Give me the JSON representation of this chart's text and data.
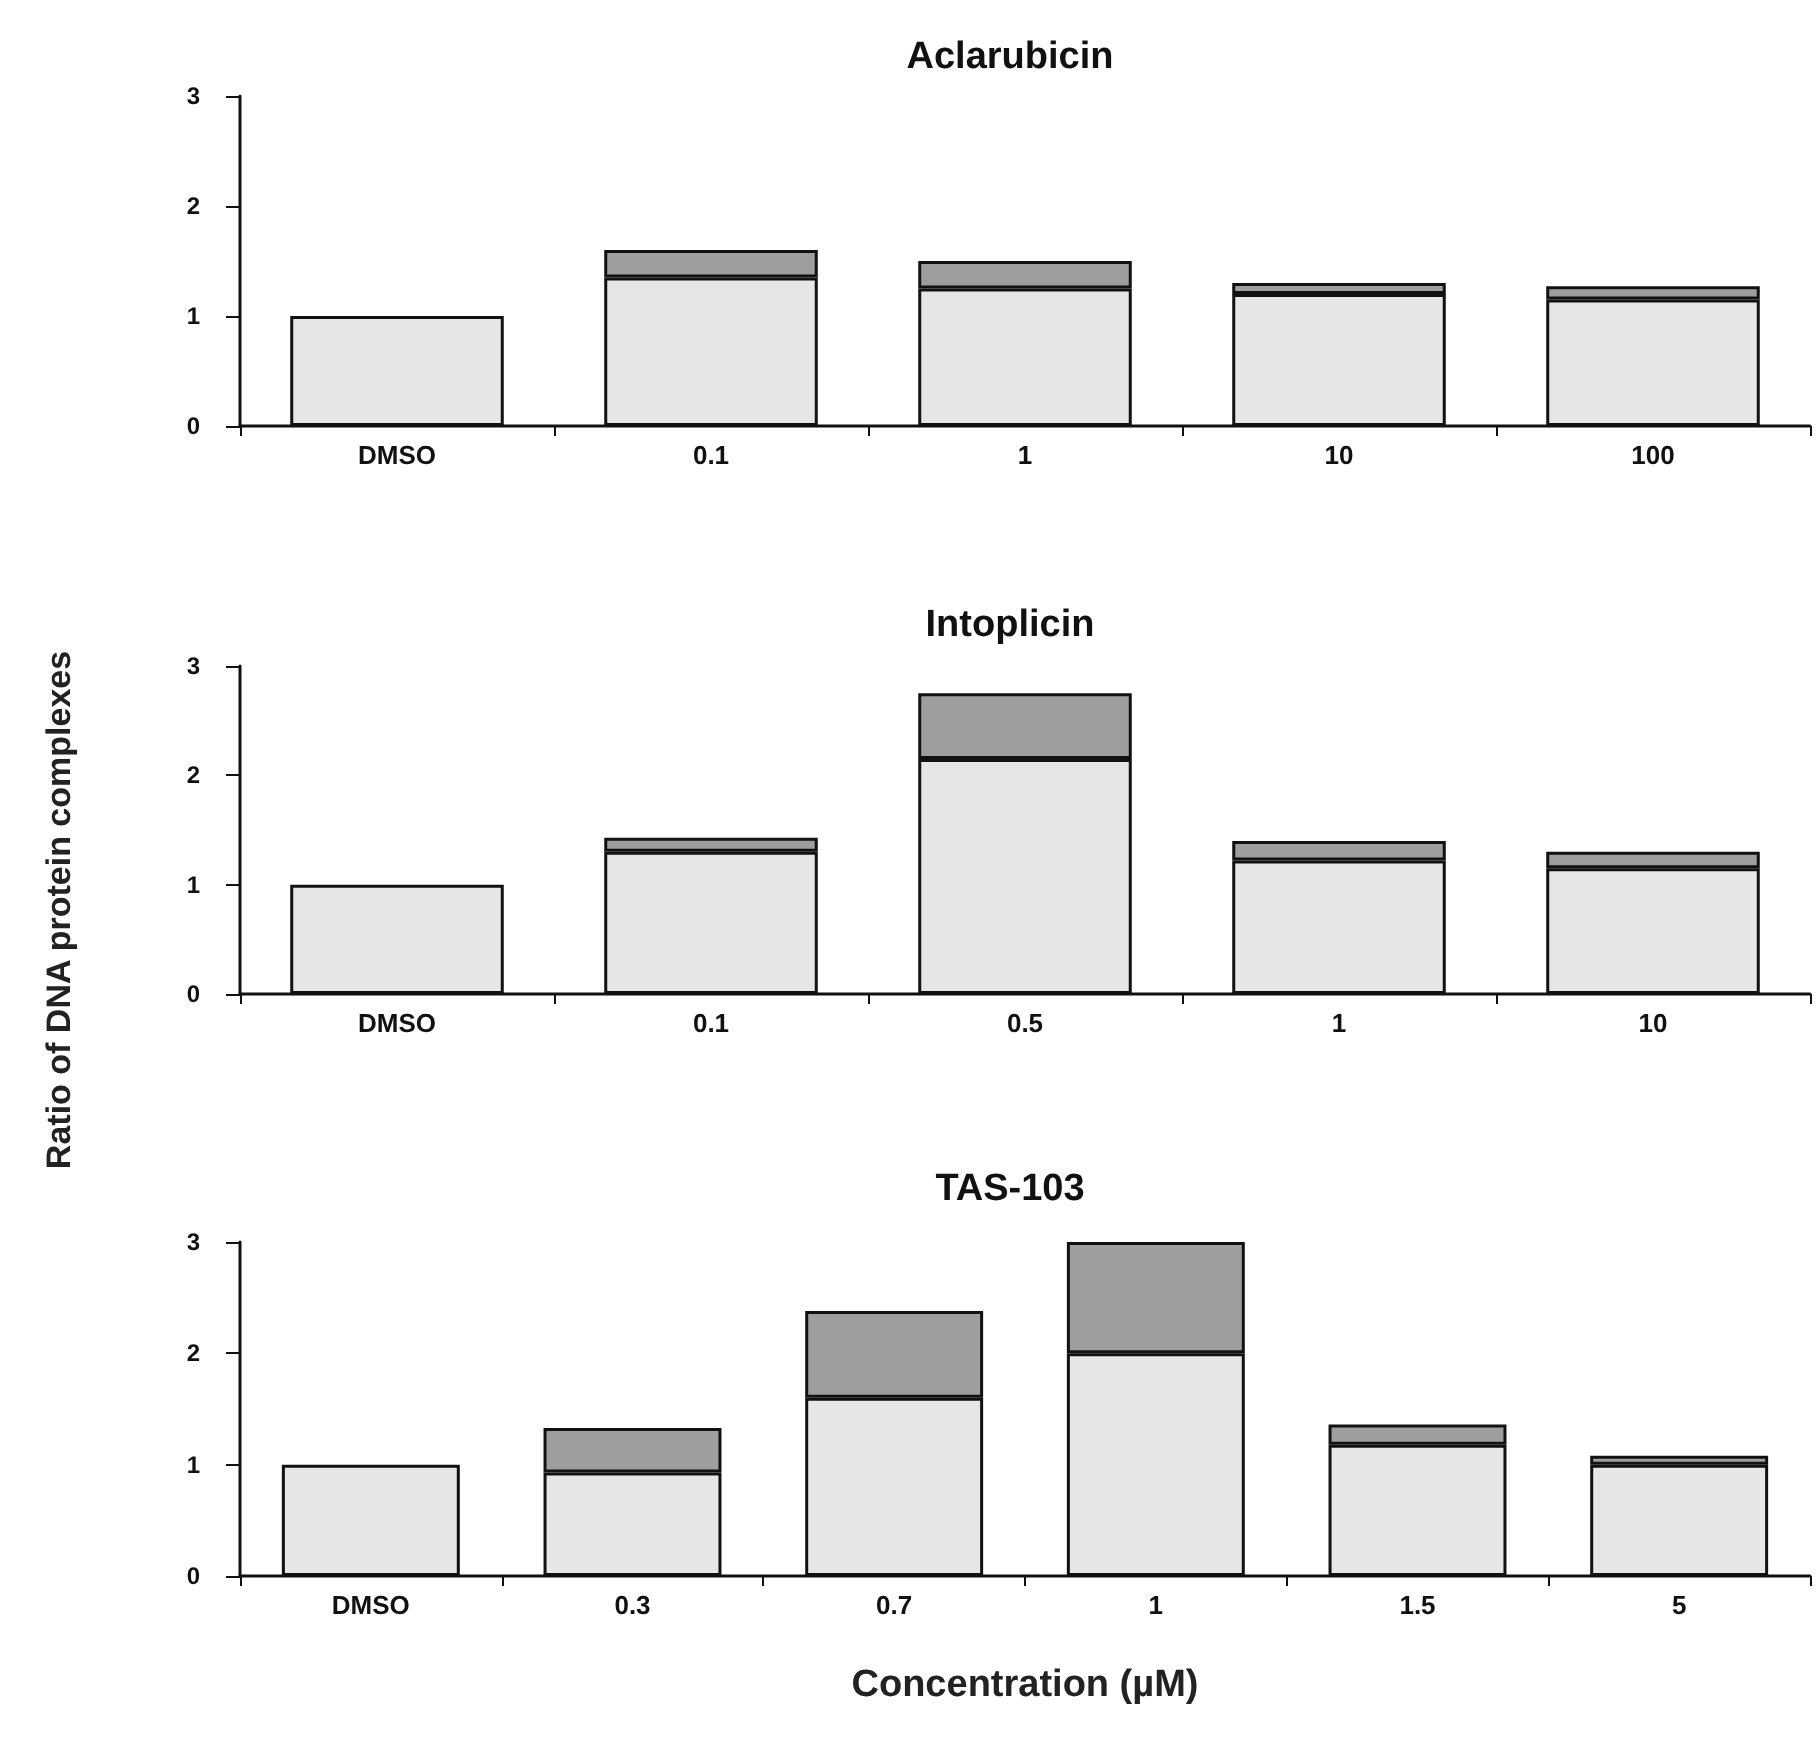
{
  "chart_data": [
    {
      "type": "bar",
      "title": "Aclarubicin",
      "categories": [
        "DMSO",
        "0.1",
        "1",
        "10",
        "100"
      ],
      "stacked": true,
      "ylim": [
        0,
        3
      ],
      "yticks": [
        0,
        1,
        2,
        3
      ],
      "grid": false,
      "series": [
        {
          "color": "#e6e6e6",
          "values": [
            1.0,
            1.35,
            1.25,
            1.2,
            1.15
          ]
        },
        {
          "color": "#9e9e9e",
          "values": [
            null,
            0.25,
            0.25,
            0.1,
            0.12
          ]
        }
      ]
    },
    {
      "type": "bar",
      "title": "Intoplicin",
      "ylabel": "Ratio of DNA protein complexes",
      "categories": [
        "DMSO",
        "0.1",
        "0.5",
        "1",
        "10"
      ],
      "stacked": true,
      "ylim": [
        0,
        3
      ],
      "yticks": [
        0,
        1,
        2,
        3
      ],
      "grid": false,
      "series": [
        {
          "color": "#e6e6e6",
          "values": [
            1.0,
            1.3,
            2.15,
            1.22,
            1.15
          ]
        },
        {
          "color": "#9e9e9e",
          "values": [
            null,
            0.13,
            0.6,
            0.18,
            0.15
          ]
        }
      ]
    },
    {
      "type": "bar",
      "title": "TAS-103",
      "xlabel": "Concentration (µM)",
      "categories": [
        "DMSO",
        "0.3",
        "0.7",
        "1",
        "1.5",
        "5"
      ],
      "stacked": true,
      "ylim": [
        0,
        3
      ],
      "yticks": [
        0,
        1,
        2,
        3
      ],
      "grid": false,
      "series": [
        {
          "color": "#e6e6e6",
          "values": [
            1.0,
            0.93,
            1.6,
            2.0,
            1.18,
            1.0
          ]
        },
        {
          "color": "#9e9e9e",
          "values": [
            null,
            0.4,
            0.78,
            1.0,
            0.18,
            0.08
          ]
        }
      ]
    }
  ]
}
